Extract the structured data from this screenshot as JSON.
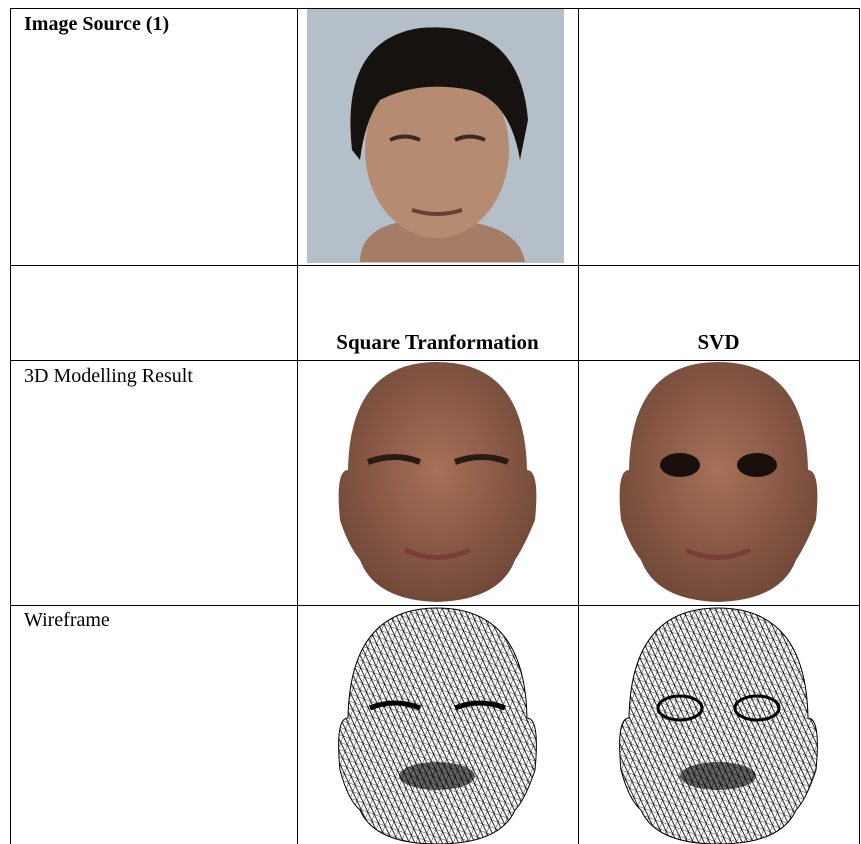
{
  "table": {
    "rows": [
      {
        "label": "Image Source (1)"
      },
      {
        "headers": [
          "Square Tranformation",
          "SVD"
        ]
      },
      {
        "label": "3D Modelling Result"
      },
      {
        "label": "Wireframe"
      }
    ]
  }
}
